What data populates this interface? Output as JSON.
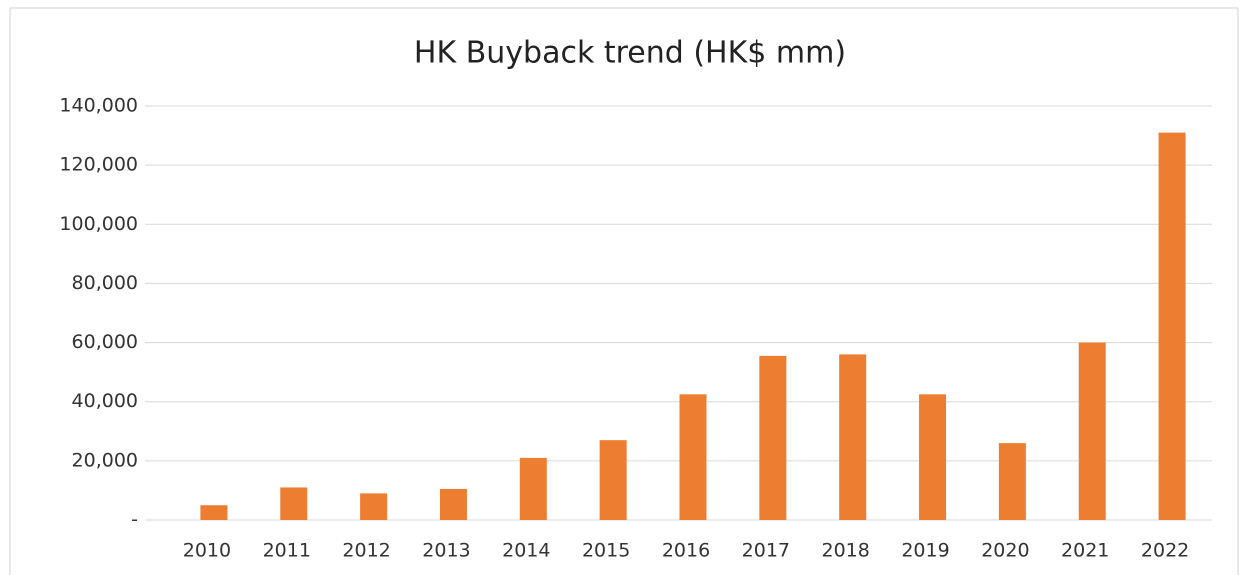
{
  "chart_data": {
    "type": "bar",
    "title": "HK Buyback trend (HK$ mm)",
    "categories": [
      "2010",
      "2011",
      "2012",
      "2013",
      "2014",
      "2015",
      "2016",
      "2017",
      "2018",
      "2019",
      "2020",
      "2021",
      "2022"
    ],
    "values": [
      5000,
      11000,
      9000,
      10500,
      21000,
      27000,
      42500,
      55500,
      56000,
      42500,
      26000,
      60000,
      131000
    ],
    "color": "#ed7d31",
    "ylim": [
      0,
      140000
    ],
    "yticks": [
      {
        "value": 0,
        "label": "-"
      },
      {
        "value": 20000,
        "label": "20,000"
      },
      {
        "value": 40000,
        "label": "40,000"
      },
      {
        "value": 60000,
        "label": "60,000"
      },
      {
        "value": 80000,
        "label": "80,000"
      },
      {
        "value": 100000,
        "label": "100,000"
      },
      {
        "value": 120000,
        "label": "120,000"
      },
      {
        "value": 140000,
        "label": "140,000"
      }
    ],
    "grid": true
  }
}
